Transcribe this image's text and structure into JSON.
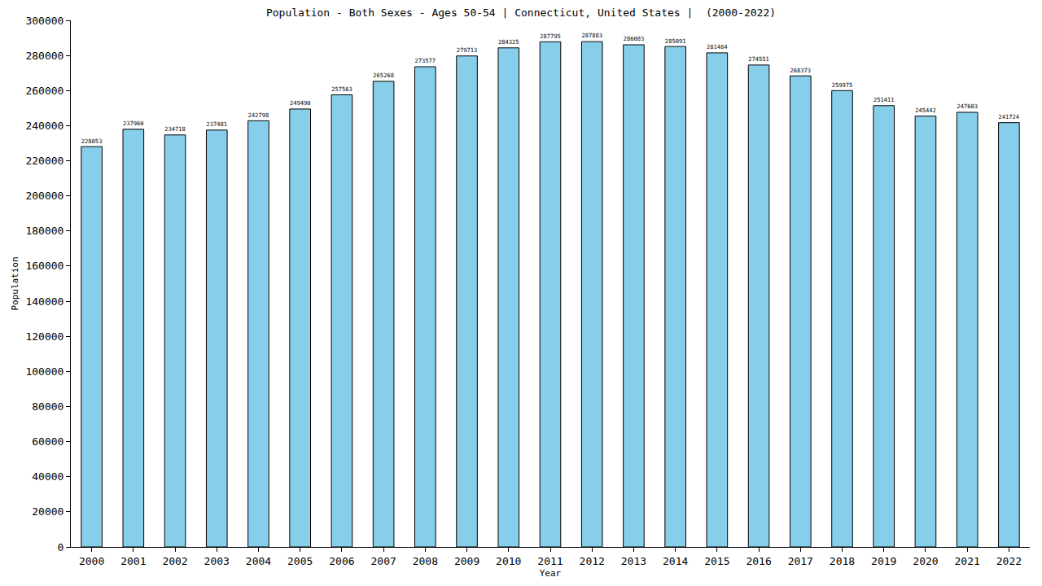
{
  "chart_data": {
    "type": "bar",
    "title": "Population - Both Sexes - Ages 50-54 | Connecticut, United States |  (2000-2022)",
    "x_label": "Year",
    "y_label": "Population",
    "categories": [
      "2000",
      "2001",
      "2002",
      "2003",
      "2004",
      "2005",
      "2006",
      "2007",
      "2008",
      "2009",
      "2010",
      "2011",
      "2012",
      "2013",
      "2014",
      "2015",
      "2016",
      "2017",
      "2018",
      "2019",
      "2020",
      "2021",
      "2022"
    ],
    "values": [
      228053,
      237960,
      234718,
      237481,
      242798,
      249490,
      257563,
      265268,
      273577,
      279713,
      284325,
      287795,
      287883,
      286083,
      285091,
      281484,
      274551,
      268373,
      259975,
      251411,
      245442,
      247603,
      241724
    ],
    "color": "#87ceeb",
    "ylim": [
      0,
      300000
    ],
    "yticks": [
      0,
      20000,
      40000,
      60000,
      80000,
      100000,
      120000,
      140000,
      160000,
      180000,
      200000,
      220000,
      240000,
      260000,
      280000,
      300000
    ],
    "grid": false,
    "data_labels": true
  }
}
